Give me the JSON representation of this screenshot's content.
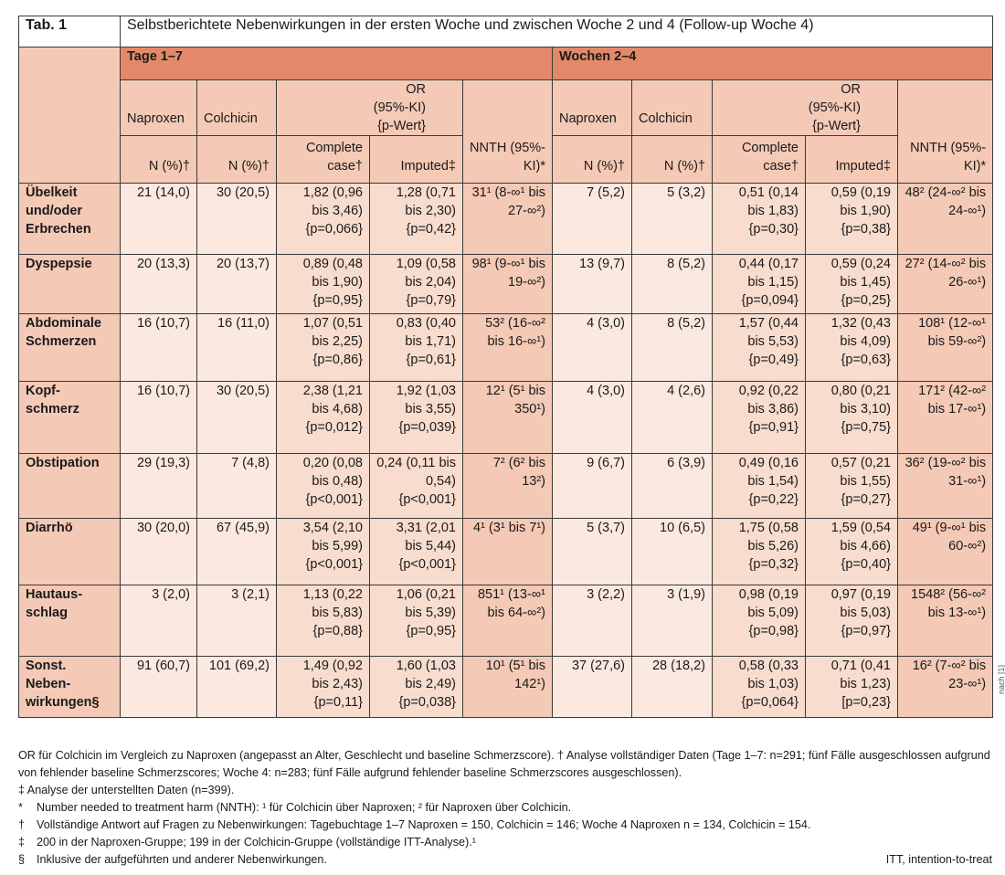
{
  "table": {
    "label": "Tab. 1",
    "caption": "Selbstberichtete Nebenwirkungen in der ersten Woche und zwischen Woche 2 und 4 (Follow-up Woche 4)",
    "group1": "Tage 1–7",
    "group2": "Wochen 2–4",
    "h_naproxen": "Naproxen",
    "h_colchicin": "Colchicin",
    "h_or": "OR (95%-KI) {p-Wert}",
    "h_n": "N (%)†",
    "h_complete": "Complete case†",
    "h_imputed": "Imputed‡",
    "h_nnth": "NNTH (95%-KI)*",
    "rows": [
      {
        "name": "Übelkeit und/oder Erbrechen",
        "c": [
          "21 (14,0)",
          "30 (20,5)",
          "1,82 (0,96 bis 3,46) {p=0,066}",
          "1,28 (0,71 bis 2,30) {p=0,42}",
          "31¹ (8-∞¹ bis 27-∞²)",
          "7 (5,2)",
          "5 (3,2)",
          "0,51 (0,14 bis 1,83) {p=0,30}",
          "0,59 (0,19 bis 1,90) {p=0,38}",
          "48² (24-∞² bis 24-∞¹)"
        ]
      },
      {
        "name": "Dyspepsie",
        "c": [
          "20 (13,3)",
          "20 (13,7)",
          "0,89 (0,48 bis 1,90) {p=0,95}",
          "1,09 (0,58 bis 2,04) {p=0,79}",
          "98¹ (9-∞¹ bis 19-∞²)",
          "13 (9,7)",
          "8 (5,2)",
          "0,44 (0,17 bis 1,15) {p=0,094}",
          "0,59 (0,24 bis 1,45) {p=0,25}",
          "27² (14-∞² bis 26-∞¹)"
        ]
      },
      {
        "name": "Abdominale Schmerzen",
        "c": [
          "16 (10,7)",
          "16 (11,0)",
          "1,07 (0,51 bis 2,25) {p=0,86}",
          "0,83 (0,40 bis 1,71) {p=0,61}",
          "53² (16-∞² bis 16-∞¹)",
          "4 (3,0)",
          "8 (5,2)",
          "1,57 (0,44 bis 5,53) {p=0,49}",
          "1,32 (0,43 bis 4,09) {p=0,63}",
          "108¹ (12-∞¹ bis 59-∞²)"
        ]
      },
      {
        "name": "Kopf-schmerz",
        "c": [
          "16 (10,7)",
          "30 (20,5)",
          "2,38 (1,21 bis 4,68) {p=0,012}",
          "1,92 (1,03 bis 3,55) {p=0,039}",
          "12¹ (5¹ bis 350¹)",
          "4 (3,0)",
          "4 (2,6)",
          "0,92 (0,22 bis 3,86) {p=0,91}",
          "0,80 (0,21 bis 3,10) {p=0,75}",
          "171² (42-∞² bis 17-∞¹)"
        ]
      },
      {
        "name": "Obstipation",
        "c": [
          "29 (19,3)",
          "7 (4,8)",
          "0,20 (0,08 bis 0,48) {p<0,001}",
          "0,24 (0,11 bis 0,54) {p<0,001}",
          "7² (6² bis 13²)",
          "9 (6,7)",
          "6 (3,9)",
          "0,49 (0,16 bis 1,54) {p=0,22}",
          "0,57 (0,21 bis 1,55) {p=0,27}",
          "36² (19-∞² bis 31-∞¹)"
        ]
      },
      {
        "name": "Diarrhö",
        "c": [
          "30 (20,0)",
          "67 (45,9)",
          "3,54 (2,10 bis 5,99) {p<0,001}",
          "3,31 (2,01 bis 5,44) {p<0,001}",
          "4¹ (3¹ bis 7¹)",
          "5 (3,7)",
          "10 (6,5)",
          "1,75 (0,58 bis 5,26) {p=0,32}",
          "1,59 (0,54 bis 4,66) {p=0,40}",
          "49¹ (9-∞¹ bis 60-∞²)"
        ]
      },
      {
        "name": "Hautaus-schlag",
        "c": [
          "3 (2,0)",
          "3 (2,1)",
          "1,13 (0,22 bis 5,83) {p=0,88}",
          "1,06 (0,21 bis 5,39) {p=0,95}",
          "851¹ (13-∞¹ bis 64-∞²)",
          "3 (2,2)",
          "3 (1,9)",
          "0,98 (0,19 bis 5,09) {p=0,98}",
          "0,97 (0,19 bis 5,03) {p=0,97}",
          "1548² (56-∞² bis 13-∞¹)"
        ]
      },
      {
        "name": "Sonst. Neben-wirkungen§",
        "c": [
          "91 (60,7)",
          "101 (69,2)",
          "1,49 (0,92 bis 2,43) {p=0,11}",
          "1,60 (1,03 bis 2,49) {p=0,038}",
          "10¹ (5¹ bis 142¹)",
          "37 (27,6)",
          "28 (18,2)",
          "0,58 (0,33 bis 1,03) {p=0,064}",
          "0,71 (0,41 bis 1,23) [p=0,23}",
          "16² (7-∞² bis 23-∞¹)"
        ]
      }
    ]
  },
  "side_note": "nach [1]",
  "notes": {
    "or_note": "OR für Colchicin im Vergleich zu Naproxen (angepasst an Alter, Geschlecht und baseline Schmerzscore). † Analyse vollständiger Daten (Tage 1–7: n=291; fünf Fälle ausgeschlossen aufgrund von fehlender baseline Schmerzscores; Woche 4: n=283; fünf Fälle aufgrund fehlender baseline Schmerzscores ausgeschlossen).",
    "imputed_note": "‡ Analyse der unterstellten Daten (n=399).",
    "footnotes": [
      {
        "mark": "*",
        "text": "Number needed to treatment harm (NNTH): ¹ für Colchicin über Naproxen; ² für Naproxen über Colchicin."
      },
      {
        "mark": "†",
        "text": "Vollständige Antwort auf Fragen zu Nebenwirkungen: Tagebuchtage 1–7 Naproxen = 150, Colchicin = 146; Woche 4 Naproxen n = 134, Colchicin = 154."
      },
      {
        "mark": "‡",
        "text": "200 in der Naproxen-Gruppe; 199 in der Colchicin-Gruppe (vollständige ITT-Analyse).¹"
      },
      {
        "mark": "§",
        "text": "Inklusive der aufgeführten und anderer Nebenwirkungen."
      }
    ],
    "itt": "ITT, intention-to-treat"
  }
}
